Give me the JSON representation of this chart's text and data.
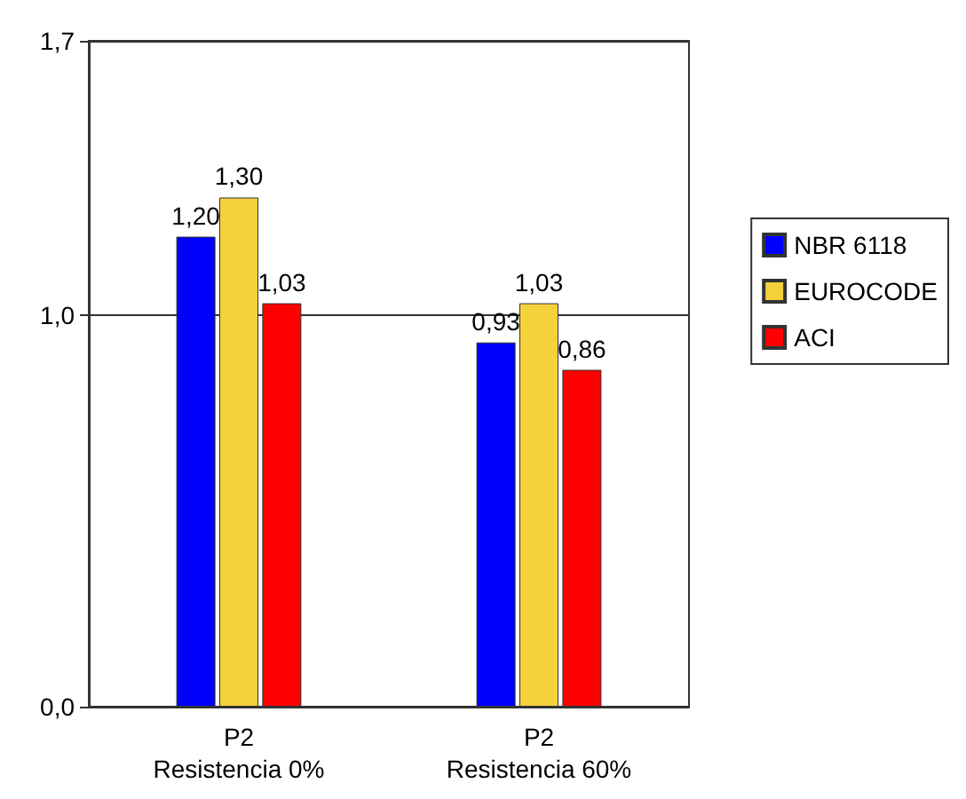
{
  "chart_data": {
    "type": "bar",
    "categories": [
      "P2\nResistencia 0%",
      "P2\nResistencia 60%"
    ],
    "series": [
      {
        "name": "NBR 6118",
        "color": "#0000ff",
        "values": [
          1.2,
          0.93
        ],
        "value_labels": [
          "1,20",
          "0,93"
        ]
      },
      {
        "name": "EUROCODE",
        "color": "#f5d13a",
        "values": [
          1.3,
          1.03
        ],
        "value_labels": [
          "1,30",
          "1,03"
        ]
      },
      {
        "name": "ACI",
        "color": "#ff0000",
        "values": [
          1.03,
          0.86
        ],
        "value_labels": [
          "1,03",
          "0,86"
        ]
      }
    ],
    "ylim": [
      0,
      1.7
    ],
    "yticks": [
      {
        "value": 0,
        "label": "0,0"
      },
      {
        "value": 1,
        "label": "1,0"
      },
      {
        "value": 1.7,
        "label": "1,7"
      }
    ],
    "grid": "y",
    "legend": "right"
  }
}
